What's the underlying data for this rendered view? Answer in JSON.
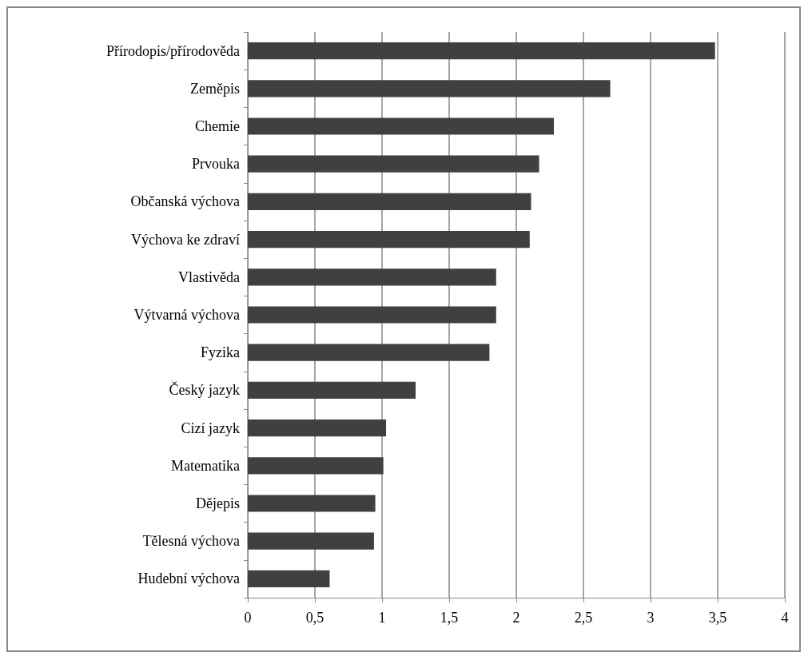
{
  "chart_data": {
    "type": "bar",
    "orientation": "horizontal",
    "categories": [
      "Přírodopis/přírodověda",
      "Zeměpis",
      "Chemie",
      "Prvouka",
      "Občanská výchova",
      "Výchova ke zdraví",
      "Vlastivěda",
      "Výtvarná výchova",
      "Fyzika",
      "Český jazyk",
      "Cizí jazyk",
      "Matematika",
      "Dějepis",
      "Tělesná výchova",
      "Hudební výchova"
    ],
    "values": [
      3.48,
      2.7,
      2.28,
      2.17,
      2.11,
      2.1,
      1.85,
      1.85,
      1.8,
      1.25,
      1.03,
      1.01,
      0.95,
      0.94,
      0.61
    ],
    "color": "#404040",
    "xlim": [
      0,
      4
    ],
    "xticks": [
      0,
      {
        "value": 0.5,
        "label": "0,5"
      },
      1,
      {
        "value": 1.5,
        "label": "1,5"
      },
      2,
      {
        "value": 2.5,
        "label": "2,5"
      },
      3,
      {
        "value": 3.5,
        "label": "3,5"
      },
      4
    ],
    "grid": "x"
  }
}
